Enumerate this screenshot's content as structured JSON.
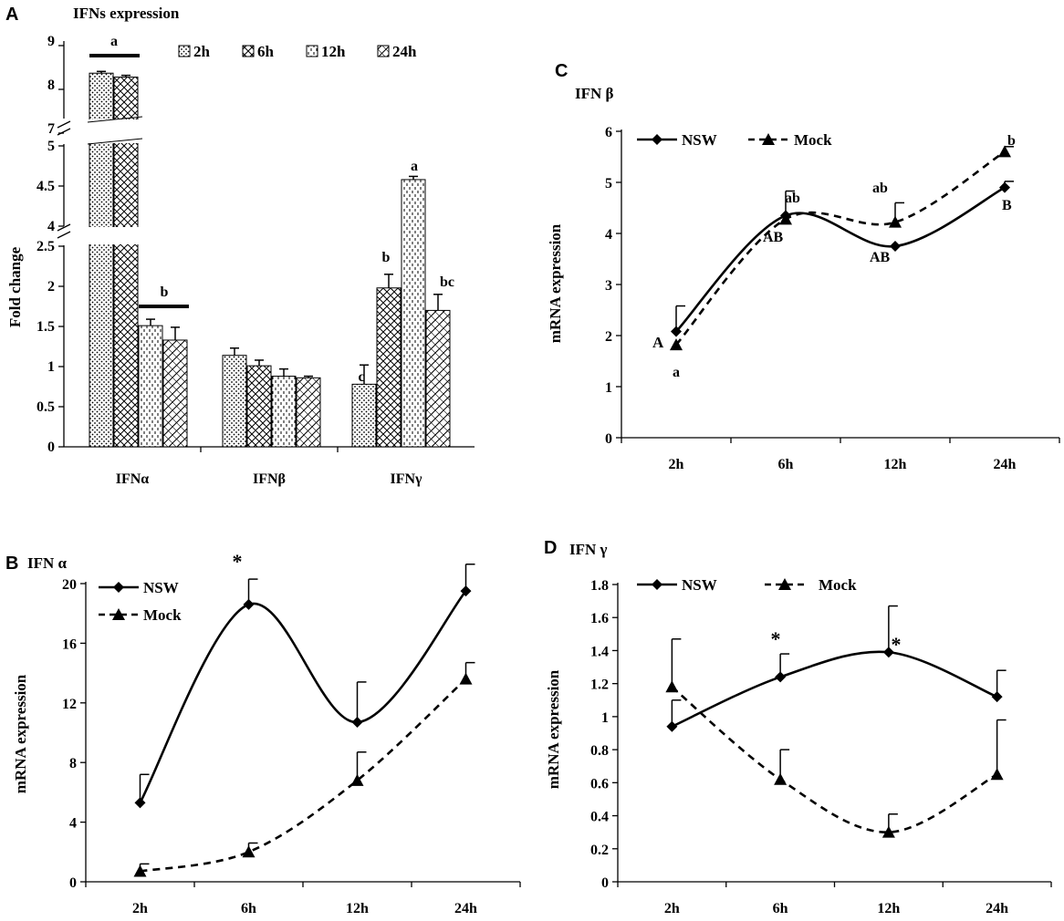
{
  "panel_letters": {
    "a": "A",
    "b": "B",
    "c": "C",
    "d": "D"
  },
  "chart_data": [
    {
      "panel": "A",
      "type": "bar",
      "title": "IFNs expression",
      "ylabel": "Fold change",
      "xlabel": "",
      "categories": [
        "IFNα",
        "IFNβ",
        "IFNγ"
      ],
      "series": [
        {
          "name": "2h",
          "pattern": "dots",
          "values": [
            8.37,
            1.14,
            0.78
          ],
          "errors": [
            0.04,
            0.09,
            0.24
          ]
        },
        {
          "name": "6h",
          "pattern": "cross",
          "values": [
            8.28,
            1.01,
            1.98
          ],
          "errors": [
            0.04,
            0.07,
            0.17
          ]
        },
        {
          "name": "12h",
          "pattern": "dashes",
          "values": [
            1.51,
            0.88,
            4.58
          ],
          "errors": [
            0.08,
            0.09,
            0.04
          ]
        },
        {
          "name": "24h",
          "pattern": "diag",
          "values": [
            1.33,
            0.86,
            1.7
          ],
          "errors": [
            0.16,
            0.02,
            0.2
          ]
        }
      ],
      "axis_segments": [
        {
          "range": [
            0,
            2.5
          ],
          "ticks": [
            "0",
            "0.5",
            "1",
            "1.5",
            "2",
            "2.5"
          ]
        },
        {
          "range": [
            4,
            5
          ],
          "ticks": [
            "4",
            "4.5",
            "5"
          ]
        },
        {
          "range": [
            7,
            9
          ],
          "ticks": [
            "7",
            "8",
            "9"
          ]
        }
      ],
      "annotations": [
        "a",
        "b",
        "c",
        "b",
        "a",
        "bc"
      ]
    },
    {
      "panel": "B",
      "type": "line",
      "title": "IFN α",
      "ylabel": "mRNA expression",
      "x": [
        "2h",
        "6h",
        "12h",
        "24h"
      ],
      "ylim": [
        0,
        20
      ],
      "yticks": [
        "0",
        "4",
        "8",
        "12",
        "16",
        "20"
      ],
      "series": [
        {
          "name": "NSW",
          "marker": "diamond",
          "style": "solid",
          "values": [
            5.3,
            18.6,
            10.7,
            19.5
          ],
          "errors": [
            1.9,
            1.7,
            2.7,
            1.8
          ]
        },
        {
          "name": "Mock",
          "marker": "triangle",
          "style": "dashed",
          "values": [
            0.7,
            2.0,
            6.8,
            13.6
          ],
          "errors": [
            0.5,
            0.6,
            1.9,
            1.1
          ]
        }
      ],
      "annotations": [
        "*"
      ]
    },
    {
      "panel": "C",
      "type": "line",
      "title": "IFN β",
      "ylabel": "mRNA expression",
      "x": [
        "2h",
        "6h",
        "12h",
        "24h"
      ],
      "ylim": [
        0,
        6
      ],
      "yticks": [
        "0",
        "1",
        "2",
        "3",
        "4",
        "5",
        "6"
      ],
      "series": [
        {
          "name": "NSW",
          "marker": "diamond",
          "style": "solid",
          "values": [
            2.08,
            4.35,
            3.75,
            4.9
          ],
          "errors": [
            0.5,
            0.0,
            0.0,
            0.12
          ]
        },
        {
          "name": "Mock",
          "marker": "triangle",
          "style": "dashed",
          "values": [
            1.82,
            4.28,
            4.22,
            5.6
          ],
          "errors": [
            0.0,
            0.55,
            0.38,
            0.1
          ]
        }
      ],
      "annotations": [
        "A",
        "a",
        "ab",
        "AB",
        "ab",
        "AB",
        "b",
        "B"
      ]
    },
    {
      "panel": "D",
      "type": "line",
      "title": "IFN γ",
      "ylabel": "mRNA expression",
      "x": [
        "2h",
        "6h",
        "12h",
        "24h"
      ],
      "ylim": [
        0,
        1.8
      ],
      "yticks": [
        "0",
        "0.2",
        "0.4",
        "0.6",
        "0.8",
        "1",
        "1.2",
        "1.4",
        "1.6",
        "1.8"
      ],
      "series": [
        {
          "name": "NSW",
          "marker": "diamond",
          "style": "solid",
          "values": [
            0.94,
            1.24,
            1.39,
            1.12
          ],
          "errors": [
            0.16,
            0.14,
            0.28,
            0.16
          ]
        },
        {
          "name": "Mock",
          "marker": "triangle",
          "style": "dashed",
          "values": [
            1.18,
            0.62,
            0.3,
            0.65
          ],
          "errors": [
            0.29,
            0.18,
            0.11,
            0.33
          ]
        }
      ],
      "annotations": [
        "*",
        "*"
      ]
    }
  ]
}
